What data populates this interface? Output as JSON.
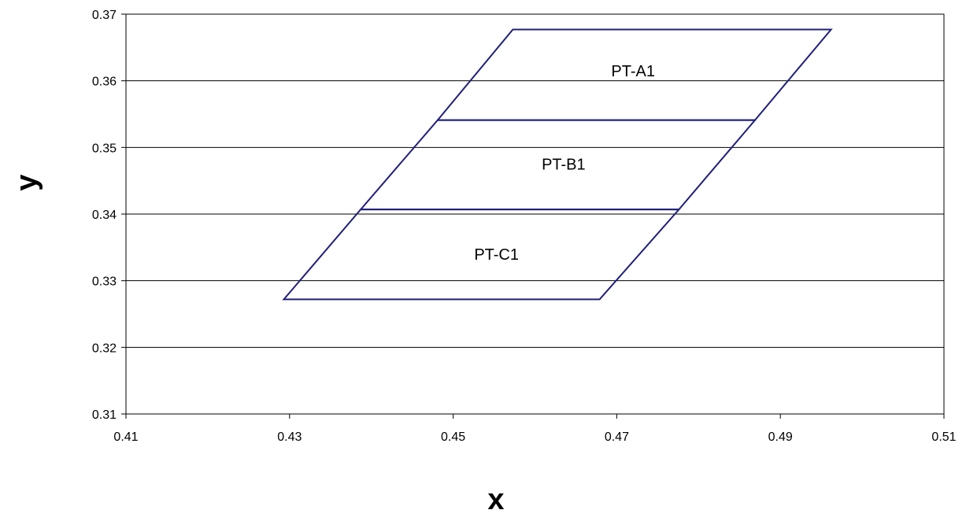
{
  "chart_data": {
    "type": "line",
    "title": "",
    "xlabel": "x",
    "ylabel": "y",
    "xlim": [
      0.41,
      0.51
    ],
    "ylim": [
      0.31,
      0.37
    ],
    "x_ticks": [
      "0.41",
      "0.43",
      "0.45",
      "0.47",
      "0.49",
      "0.51"
    ],
    "y_ticks": [
      "0.31",
      "0.32",
      "0.33",
      "0.34",
      "0.35",
      "0.36",
      "0.37"
    ],
    "grid": "horizontal",
    "line_color": "#1F1F7A",
    "regions": [
      {
        "label": "PT-A1",
        "label_at": [
          0.472,
          0.3615
        ],
        "points": [
          [
            0.4481,
            0.3541
          ],
          [
            0.4573,
            0.3677
          ],
          [
            0.4962,
            0.3677
          ],
          [
            0.4869,
            0.3541
          ]
        ]
      },
      {
        "label": "PT-B1",
        "label_at": [
          0.4635,
          0.3475
        ],
        "points": [
          [
            0.4387,
            0.3407
          ],
          [
            0.4481,
            0.3541
          ],
          [
            0.4869,
            0.3541
          ],
          [
            0.4776,
            0.3407
          ]
        ]
      },
      {
        "label": "PT-C1",
        "label_at": [
          0.4553,
          0.334
        ],
        "points": [
          [
            0.4293,
            0.3272
          ],
          [
            0.4387,
            0.3407
          ],
          [
            0.4776,
            0.3407
          ],
          [
            0.4679,
            0.3272
          ]
        ]
      }
    ]
  }
}
